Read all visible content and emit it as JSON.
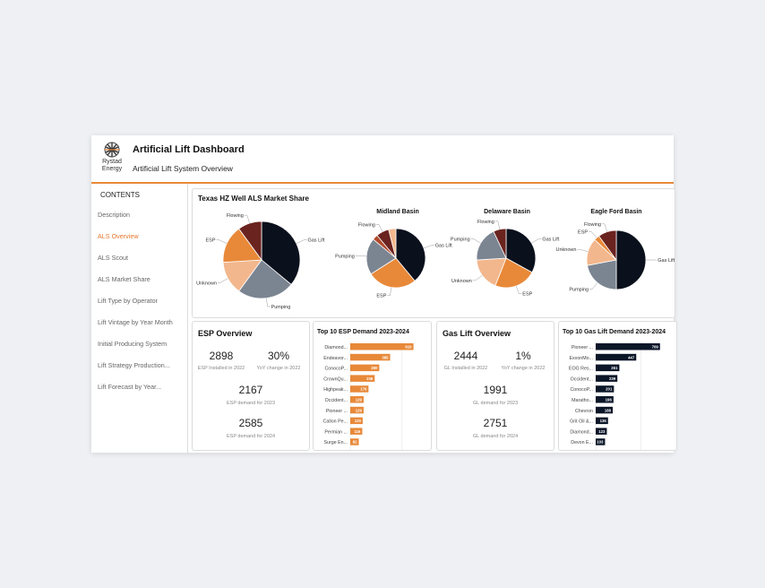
{
  "header": {
    "logo_text_1": "Rystad",
    "logo_text_2": "Energy",
    "title": "Artificial Lift Dashboard",
    "subtitle": "Artificial Lift System Overview"
  },
  "sidebar": {
    "heading": "CONTENTS",
    "items": [
      {
        "label": "Description",
        "active": false
      },
      {
        "label": "ALS Overview",
        "active": true
      },
      {
        "label": "ALS Scout",
        "active": false
      },
      {
        "label": "ALS Market Share",
        "active": false
      },
      {
        "label": "Lift Type by Operator",
        "active": false
      },
      {
        "label": "Lift Vintage by Year Month",
        "active": false
      },
      {
        "label": "Initial Producing System",
        "active": false
      },
      {
        "label": "Lift Strategy Production...",
        "active": false
      },
      {
        "label": "Lift Forecast by Year...",
        "active": false
      }
    ]
  },
  "colors": {
    "accent": "#e8772e",
    "gas_lift": "#0b111c",
    "pumping": "#7b8491",
    "unknown": "#f2b78d",
    "esp": "#e8893a",
    "flowing": "#6b2320",
    "other": "#b04a2b",
    "esp_bar": "#e8893a",
    "gl_bar": "#0b1628"
  },
  "market_share": {
    "title": "Texas HZ Well ALS Market Share",
    "basins": {
      "midland": "Midland Basin",
      "delaware": "Delaware Basin",
      "eagle_ford": "Eagle Ford Basin"
    }
  },
  "esp_overview": {
    "title": "ESP Overview",
    "installed_value": "2898",
    "installed_label": "ESP Installed in 2022",
    "yoy_value": "30%",
    "yoy_label": "YoY change in 2022",
    "demand_2023_value": "2167",
    "demand_2023_label": "ESP demand for 2023",
    "demand_2024_value": "2585",
    "demand_2024_label": "ESP demand for 2024"
  },
  "gl_overview": {
    "title": "Gas Lift Overview",
    "installed_value": "2444",
    "installed_label": "GL Installed in 2022",
    "yoy_value": "1%",
    "yoy_label": "YoY change in 2022",
    "demand_2023_value": "1991",
    "demand_2023_label": "GL demand for 2023",
    "demand_2024_value": "2751",
    "demand_2024_label": "GL demand for 2024"
  },
  "chart_data": [
    {
      "type": "pie",
      "id": "texas",
      "title": "Texas HZ Well ALS Market Share",
      "slices": [
        {
          "label": "Gas Lift",
          "value": 36,
          "color": "#0b111c"
        },
        {
          "label": "Pumping",
          "value": 24,
          "color": "#7b8491"
        },
        {
          "label": "Unknown",
          "value": 14,
          "color": "#f2b78d"
        },
        {
          "label": "ESP",
          "value": 16,
          "color": "#e8893a"
        },
        {
          "label": "Flowing",
          "value": 10,
          "color": "#6b2320"
        }
      ]
    },
    {
      "type": "pie",
      "id": "midland",
      "title": "Midland Basin",
      "slices": [
        {
          "label": "Gas Lift",
          "value": 39,
          "color": "#0b111c"
        },
        {
          "label": "ESP",
          "value": 27,
          "color": "#e8893a"
        },
        {
          "label": "Pumping",
          "value": 20,
          "color": "#7b8491"
        },
        {
          "label": "",
          "value": 3,
          "color": "#b04a2b"
        },
        {
          "label": "Flowing",
          "value": 7,
          "color": "#6b2320"
        },
        {
          "label": "",
          "value": 4,
          "color": "#f2b78d"
        }
      ]
    },
    {
      "type": "pie",
      "id": "delaware",
      "title": "Delaware Basin",
      "slices": [
        {
          "label": "Gas Lift",
          "value": 33,
          "color": "#0b111c"
        },
        {
          "label": "ESP",
          "value": 23,
          "color": "#e8893a"
        },
        {
          "label": "Unknown",
          "value": 18,
          "color": "#f2b78d"
        },
        {
          "label": "Pumping",
          "value": 19,
          "color": "#7b8491"
        },
        {
          "label": "Flowing",
          "value": 7,
          "color": "#6b2320"
        }
      ]
    },
    {
      "type": "pie",
      "id": "eagle_ford",
      "title": "Eagle Ford Basin",
      "slices": [
        {
          "label": "Gas Lift",
          "value": 50,
          "color": "#0b111c"
        },
        {
          "label": "Pumping",
          "value": 22,
          "color": "#7b8491"
        },
        {
          "label": "Unknown",
          "value": 15,
          "color": "#f2b78d"
        },
        {
          "label": "ESP",
          "value": 3,
          "color": "#e8893a"
        },
        {
          "label": "Flowing",
          "value": 10,
          "color": "#6b2320"
        }
      ]
    },
    {
      "type": "bar",
      "id": "esp_demand",
      "title": "Top 10 ESP Demand 2023-2024",
      "categories": [
        "Diamond...",
        "Endeavor...",
        "ConocoP...",
        "CrownQu...",
        "Highpeak...",
        "Occident...",
        "Pioneer ...",
        "Callon Pe...",
        "Permian ...",
        "Surge En..."
      ],
      "values": [
        610,
        385,
        280,
        236,
        176,
        129,
        129,
        120,
        116,
        82
      ],
      "color": "#e8893a",
      "xticks": [
        0,
        500
      ],
      "xlim": [
        0,
        700
      ]
    },
    {
      "type": "bar",
      "id": "gl_demand",
      "title": "Top 10 Gas Lift Demand 2023-2024",
      "categories": [
        "Pioneer ...",
        "ExxonMo...",
        "EOG Res...",
        "Occident...",
        "ConocoP...",
        "Maratho...",
        "Chevron",
        "Grit Oil &...",
        "Diamond...",
        "Devon E..."
      ],
      "values": [
        709,
        447,
        261,
        239,
        201,
        196,
        188,
        136,
        123,
        103
      ],
      "color": "#0b1628",
      "xticks": [
        0,
        500
      ],
      "xlim": [
        0,
        800
      ]
    }
  ]
}
